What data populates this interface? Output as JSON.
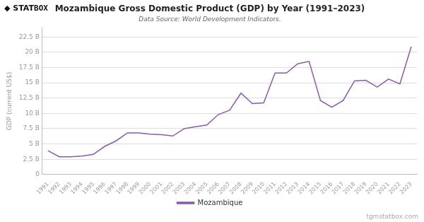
{
  "chart_data": {
    "type": "line",
    "title": "Mozambique Gross Domestic Product (GDP) by Year (1991–2023)",
    "subtitle": "Data Source: World Development Indicators.",
    "ylabel": "GDP (current US$)",
    "annotations": [
      "◆ STAT",
      "BOX",
      "tgmstatbox.com"
    ],
    "x": [
      1991,
      1992,
      1993,
      1994,
      1995,
      1996,
      1997,
      1998,
      1999,
      2000,
      2001,
      2002,
      2003,
      2004,
      2005,
      2006,
      2007,
      2008,
      2009,
      2010,
      2011,
      2012,
      2013,
      2014,
      2015,
      2016,
      2017,
      2018,
      2019,
      2020,
      2021,
      2022,
      2023
    ],
    "series": [
      {
        "name": "Mozambique",
        "color": "#8b5aad",
        "values": [
          3.9,
          2.9,
          2.9,
          3.0,
          3.3,
          4.6,
          5.5,
          6.8,
          6.8,
          6.6,
          6.5,
          6.3,
          7.5,
          7.8,
          8.1,
          9.8,
          10.5,
          13.3,
          11.6,
          11.7,
          16.6,
          16.6,
          18.1,
          18.5,
          12.1,
          11.0,
          12.1,
          15.3,
          15.4,
          14.3,
          15.6,
          14.8,
          20.9
        ]
      }
    ],
    "xlim": [
      1990.5,
      2023.5
    ],
    "xticks": [
      1991,
      1992,
      1993,
      1994,
      1995,
      1996,
      1997,
      1998,
      1999,
      2000,
      2001,
      2002,
      2003,
      2004,
      2005,
      2006,
      2007,
      2008,
      2009,
      2010,
      2011,
      2012,
      2013,
      2014,
      2015,
      2016,
      2017,
      2018,
      2019,
      2020,
      2021,
      2022,
      2023
    ],
    "ylim": [
      0,
      24.0
    ],
    "yticks": [
      0,
      {
        "value": 2.5,
        "label": "2.5 B"
      },
      {
        "value": 5.0,
        "label": "5 B"
      },
      {
        "value": 7.5,
        "label": "7.5 B"
      },
      {
        "value": 10.0,
        "label": "10 B"
      },
      {
        "value": 12.5,
        "label": "12.5 B"
      },
      {
        "value": 15.0,
        "label": "15 B"
      },
      {
        "value": 17.5,
        "label": "17.5 B"
      },
      {
        "value": 20.0,
        "label": "20 B"
      },
      {
        "value": 22.5,
        "label": "22.5 B"
      }
    ],
    "grid": true,
    "legend": "bottom"
  }
}
